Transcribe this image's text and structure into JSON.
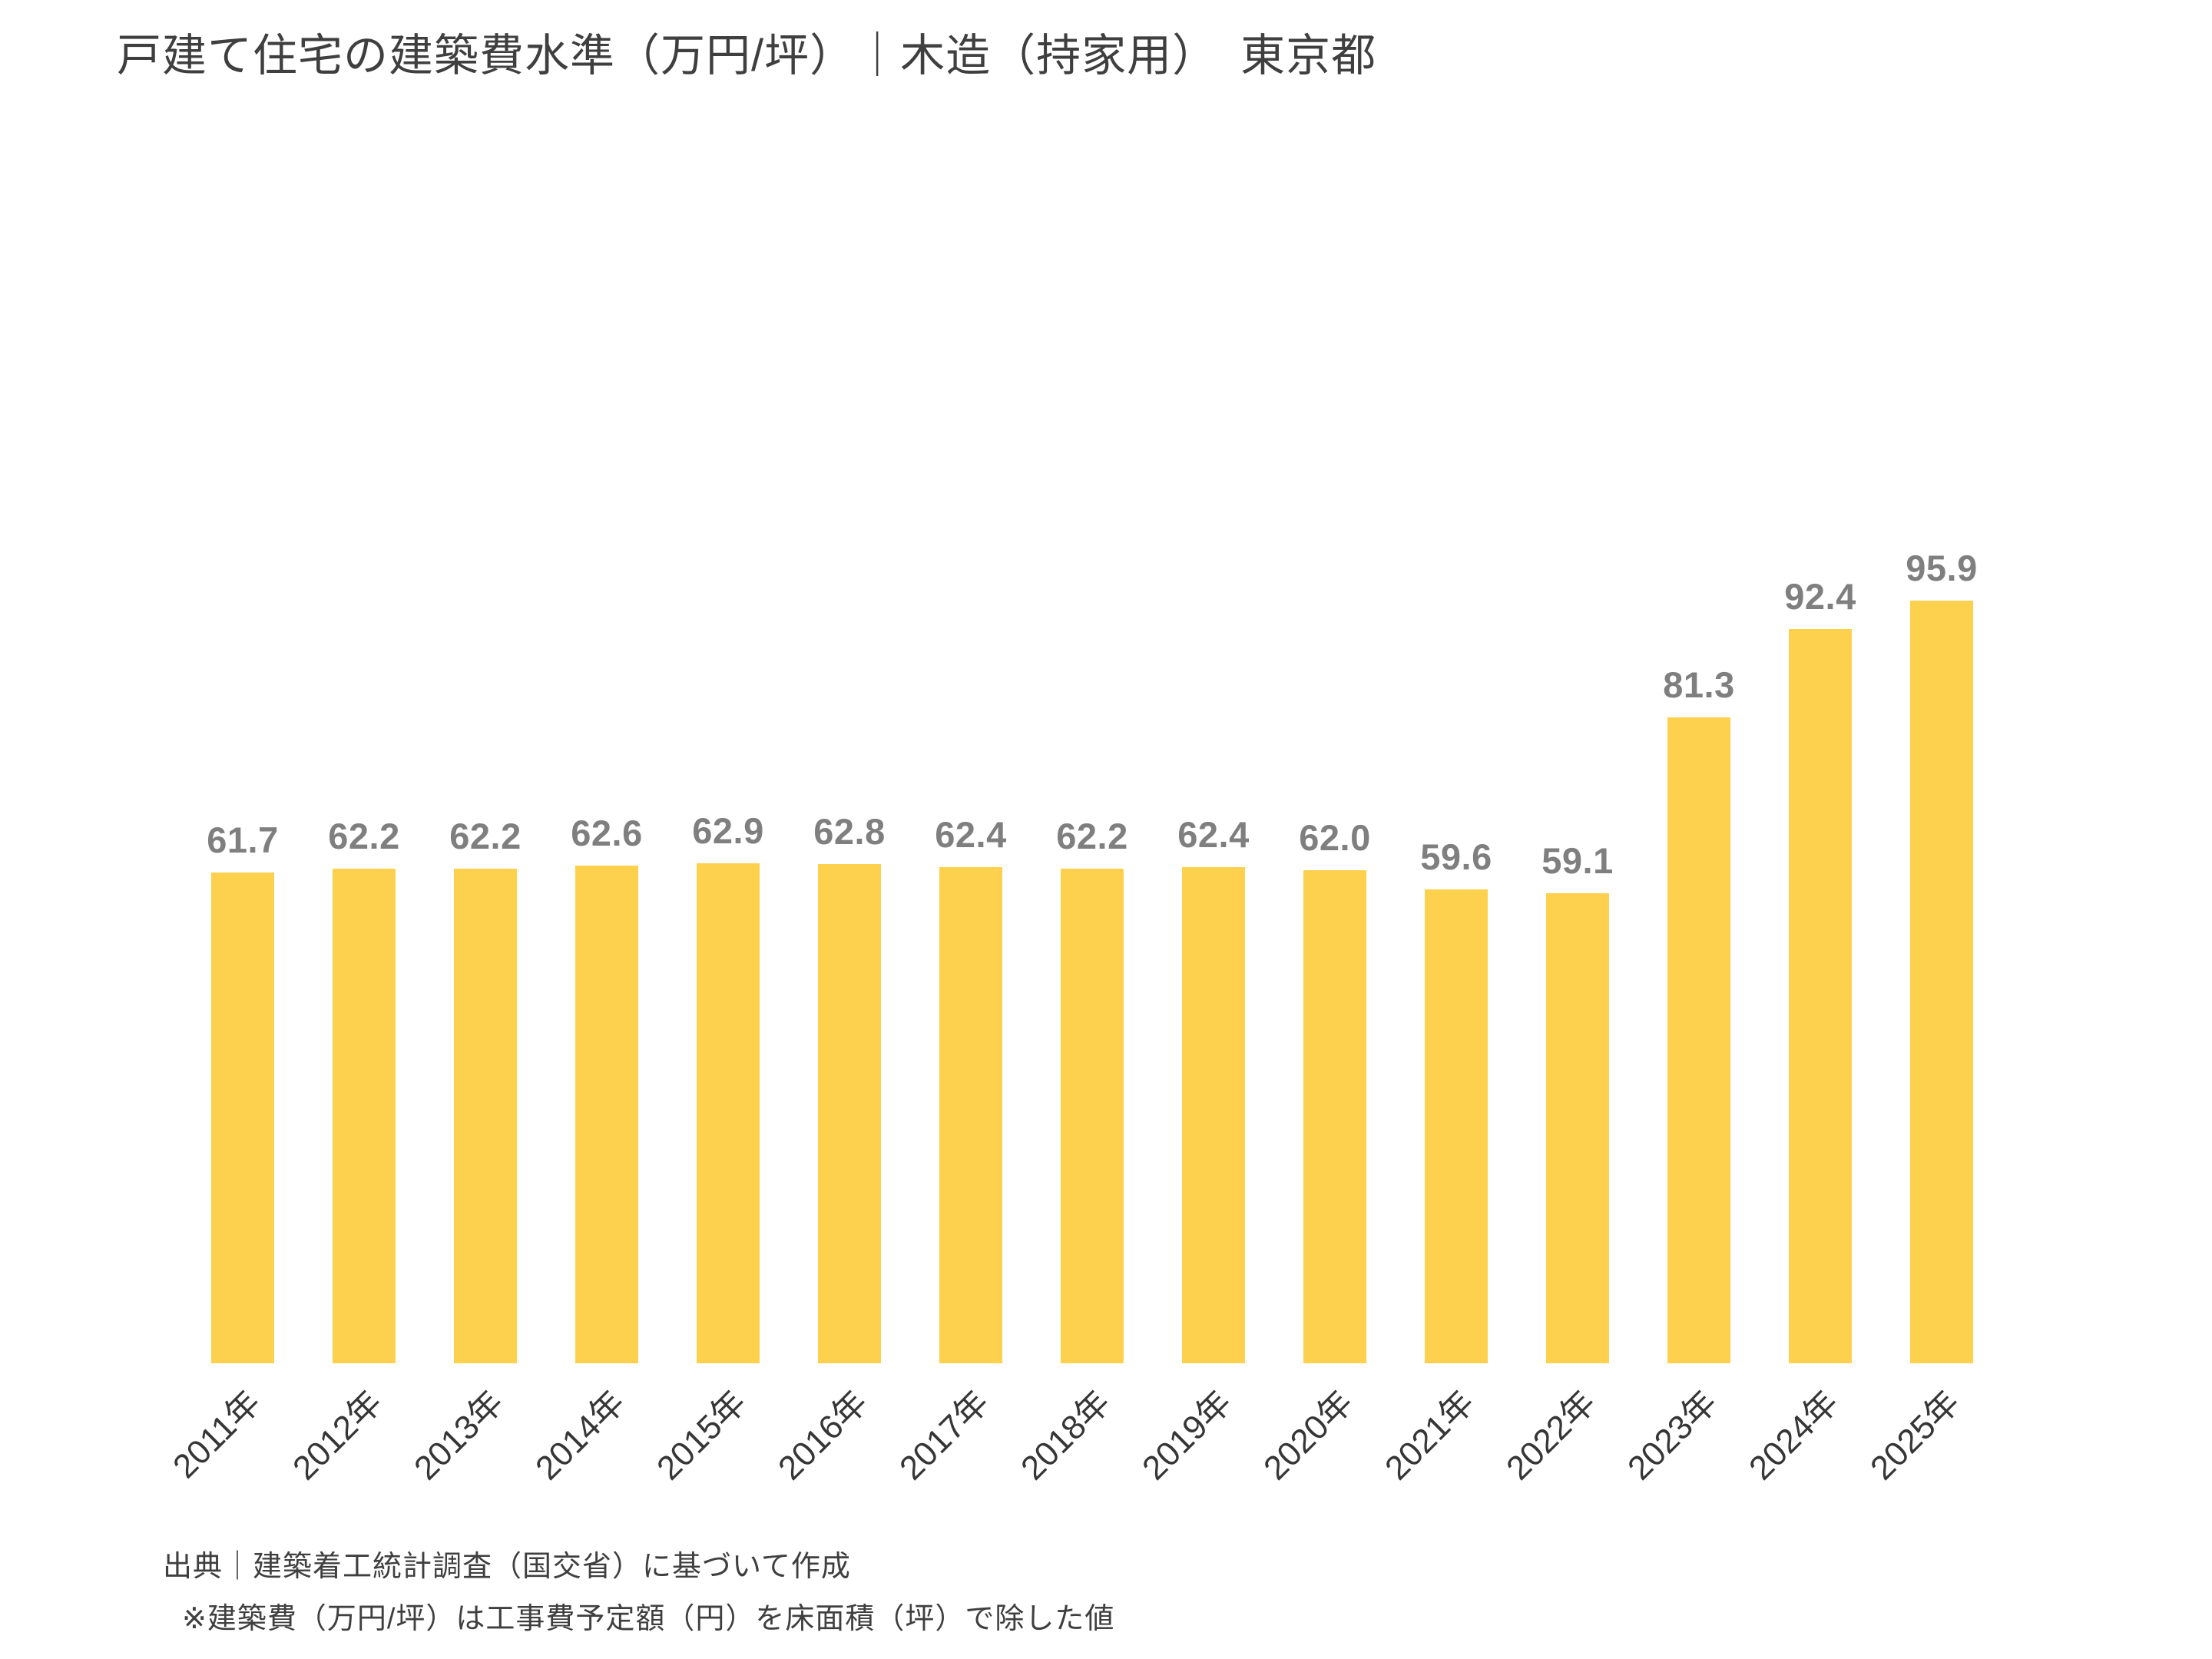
{
  "title": "戸建て住宅の建築費水準（万円/坪）｜木造（持家用）　東京都",
  "chart_data": {
    "type": "bar",
    "title": "戸建て住宅の建築費水準（万円/坪）｜木造（持家用）　東京都",
    "categories": [
      "2011年",
      "2012年",
      "2013年",
      "2014年",
      "2015年",
      "2016年",
      "2017年",
      "2018年",
      "2019年",
      "2020年",
      "2021年",
      "2022年",
      "2023年",
      "2024年",
      "2025年"
    ],
    "values": [
      61.7,
      62.2,
      62.2,
      62.6,
      62.9,
      62.8,
      62.4,
      62.2,
      62.4,
      62.0,
      59.6,
      59.1,
      81.3,
      92.4,
      95.9
    ],
    "value_labels": [
      "61.7",
      "62.2",
      "62.2",
      "62.6",
      "62.9",
      "62.8",
      "62.4",
      "62.2",
      "62.4",
      "62.0",
      "59.6",
      "59.1",
      "81.3",
      "92.4",
      "95.9"
    ],
    "xlabel": "",
    "ylabel": "",
    "ylim": [
      0,
      105
    ],
    "grid": false,
    "legend_shown": false,
    "y_axis_shown": false,
    "bar_color": "#fdd14e",
    "value_label_color": "#7f7f7f",
    "x_label_rotation_deg": 45
  },
  "footer": {
    "source": "出典｜建築着工統計調査（国交省）に基づいて作成",
    "note": "※建築費（万円/坪）は工事費予定額（円）を床面積（坪）で除した値"
  }
}
